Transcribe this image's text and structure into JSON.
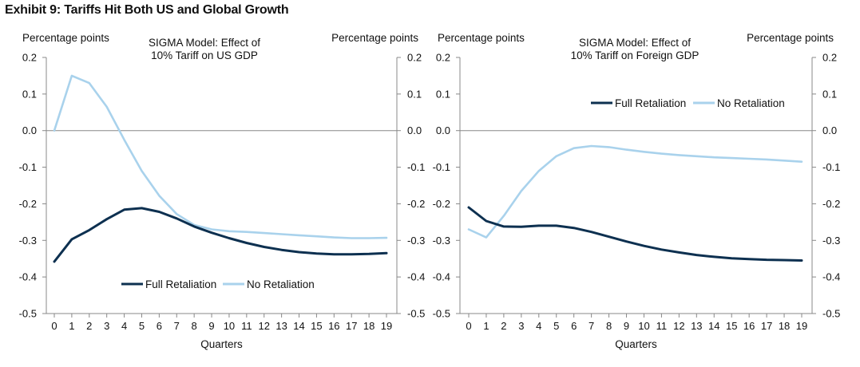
{
  "exhibit_title": "Exhibit 9: Tariffs Hit Both US and Global Growth",
  "colors": {
    "full_retaliation": "#0d3050",
    "no_retaliation": "#a9d2ec",
    "axis": "#888888"
  },
  "chart_data": [
    {
      "type": "line",
      "title_lines": [
        "SIGMA Model: Effect of",
        "10% Tariff on US GDP"
      ],
      "left_axis_label": "Percentage points",
      "right_axis_label": "Percentage points",
      "xlabel": "Quarters",
      "x": [
        0,
        1,
        2,
        3,
        4,
        5,
        6,
        7,
        8,
        9,
        10,
        11,
        12,
        13,
        14,
        15,
        16,
        17,
        18,
        19
      ],
      "ylim": [
        -0.5,
        0.2
      ],
      "yticks": [
        0.2,
        0.1,
        0.0,
        -0.1,
        -0.2,
        -0.3,
        -0.4,
        -0.5
      ],
      "ytick_labels": [
        "0.2",
        "0.1",
        "0.0",
        "-0.1",
        "-0.2",
        "-0.3",
        "-0.4",
        "-0.5"
      ],
      "legend_position": "bottom-center",
      "series": [
        {
          "name": "Full Retaliation",
          "values": [
            -0.358,
            -0.297,
            -0.272,
            -0.242,
            -0.216,
            -0.212,
            -0.222,
            -0.24,
            -0.262,
            -0.279,
            -0.294,
            -0.307,
            -0.318,
            -0.326,
            -0.332,
            -0.336,
            -0.338,
            -0.338,
            -0.337,
            -0.335
          ]
        },
        {
          "name": "No Retaliation",
          "values": [
            0.0,
            0.15,
            0.13,
            0.065,
            -0.025,
            -0.11,
            -0.178,
            -0.228,
            -0.258,
            -0.27,
            -0.275,
            -0.277,
            -0.28,
            -0.283,
            -0.286,
            -0.289,
            -0.292,
            -0.294,
            -0.294,
            -0.293
          ]
        }
      ]
    },
    {
      "type": "line",
      "title_lines": [
        "SIGMA Model: Effect of",
        "10% Tariff on Foreign GDP"
      ],
      "left_axis_label": "Percentage points",
      "right_axis_label": "Percentage points",
      "xlabel": "Quarters",
      "x": [
        0,
        1,
        2,
        3,
        4,
        5,
        6,
        7,
        8,
        9,
        10,
        11,
        12,
        13,
        14,
        15,
        16,
        17,
        18,
        19
      ],
      "ylim": [
        -0.5,
        0.2
      ],
      "yticks": [
        0.2,
        0.1,
        0.0,
        -0.1,
        -0.2,
        -0.3,
        -0.4,
        -0.5
      ],
      "ytick_labels": [
        "0.2",
        "0.1",
        "0.0",
        "-0.1",
        "-0.2",
        "-0.3",
        "-0.4",
        "-0.5"
      ],
      "legend_position": "top-right",
      "series": [
        {
          "name": "Full Retaliation",
          "values": [
            -0.21,
            -0.247,
            -0.262,
            -0.263,
            -0.26,
            -0.26,
            -0.266,
            -0.277,
            -0.29,
            -0.303,
            -0.315,
            -0.325,
            -0.333,
            -0.34,
            -0.345,
            -0.349,
            -0.351,
            -0.353,
            -0.354,
            -0.355
          ]
        },
        {
          "name": "No Retaliation",
          "values": [
            -0.27,
            -0.292,
            -0.233,
            -0.165,
            -0.11,
            -0.07,
            -0.048,
            -0.042,
            -0.045,
            -0.052,
            -0.058,
            -0.063,
            -0.067,
            -0.07,
            -0.073,
            -0.075,
            -0.077,
            -0.079,
            -0.082,
            -0.085
          ]
        }
      ]
    }
  ]
}
